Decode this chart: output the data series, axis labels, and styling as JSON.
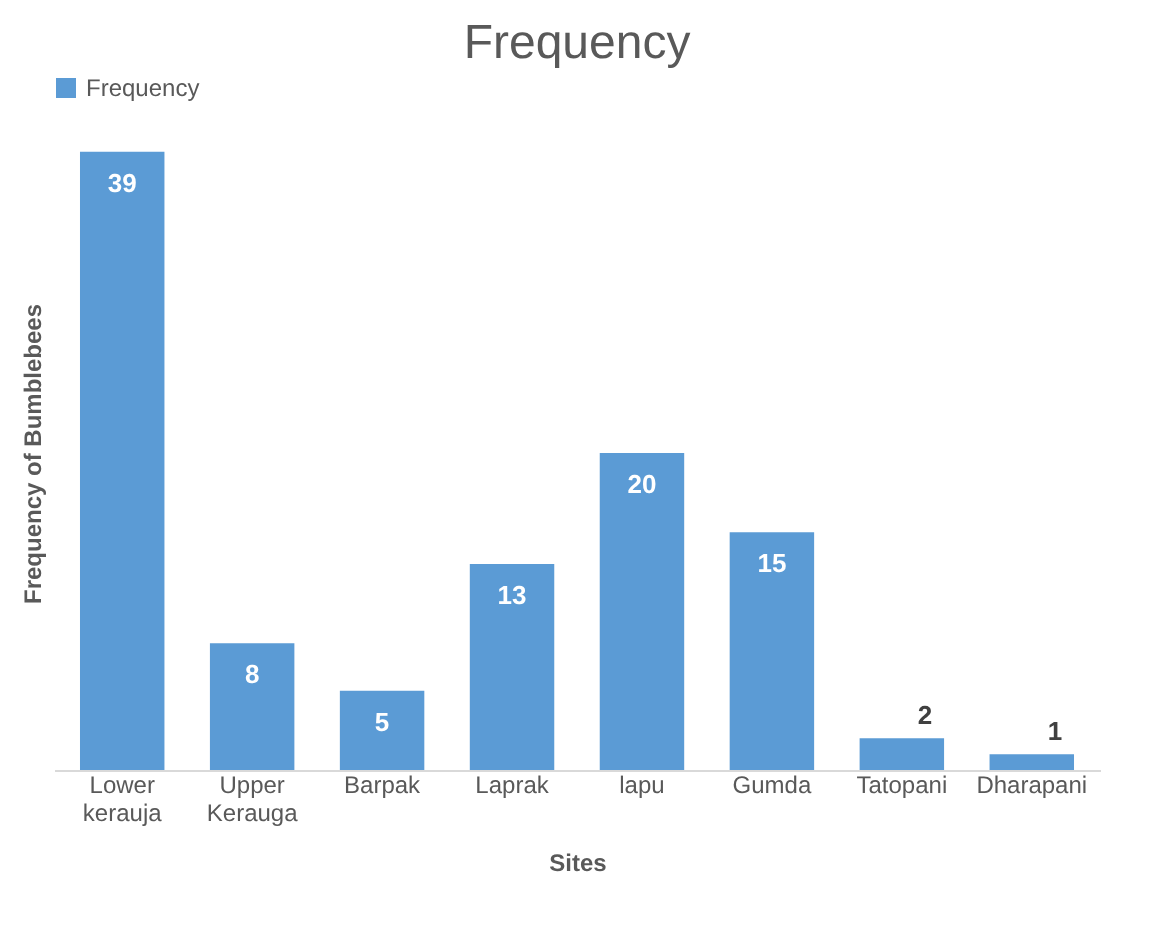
{
  "chart_data": {
    "type": "bar",
    "title": "Frequency",
    "xlabel": "Sites",
    "ylabel": "Frequency of Bumblebees",
    "categories": [
      "Lower kerauja",
      "Upper Kerauga",
      "Barpak",
      "Laprak",
      "lapu",
      "Gumda",
      "Tatopani",
      "Dharapani"
    ],
    "series": [
      {
        "name": "Frequency",
        "color": "#5b9bd5",
        "values": [
          39,
          8,
          5,
          13,
          20,
          15,
          2,
          1
        ]
      }
    ],
    "data_labels": true,
    "legend": "top",
    "grid": false,
    "tick_labels": "x"
  }
}
